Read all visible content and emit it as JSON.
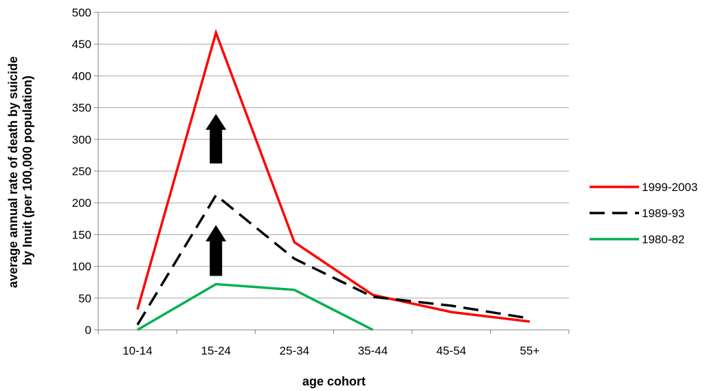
{
  "chart_data": {
    "type": "line",
    "categories": [
      "10-14",
      "15-24",
      "25-34",
      "35-44",
      "45-54",
      "55+"
    ],
    "xlabel": "age cohort",
    "ylabel": "average annual rate of death by suicide by Inuit (per 100,000 population)",
    "ylabel_lines": [
      "average annual rate of death by suicide",
      "by Inuit (per 100,000 population)"
    ],
    "ylim": [
      0,
      500
    ],
    "yticks": [
      0,
      50,
      100,
      150,
      200,
      250,
      300,
      350,
      400,
      450,
      500
    ],
    "grid": "horizontal",
    "legend_position": "right",
    "series": [
      {
        "name": "1999-2003",
        "color": "#ff0000",
        "dash": "solid",
        "values": [
          32,
          468,
          138,
          55,
          28,
          13
        ]
      },
      {
        "name": "1989-93",
        "color": "#000000",
        "dash": "dashed",
        "values": [
          8,
          212,
          112,
          52,
          38,
          18
        ]
      },
      {
        "name": "1980-82",
        "color": "#00b050",
        "dash": "solid",
        "values": [
          0,
          72,
          63,
          0,
          null,
          null
        ]
      }
    ],
    "annotations": [
      {
        "type": "up-arrow",
        "category": "15-24",
        "from": 262,
        "to": 340
      },
      {
        "type": "up-arrow",
        "category": "15-24",
        "from": 85,
        "to": 165
      }
    ]
  }
}
